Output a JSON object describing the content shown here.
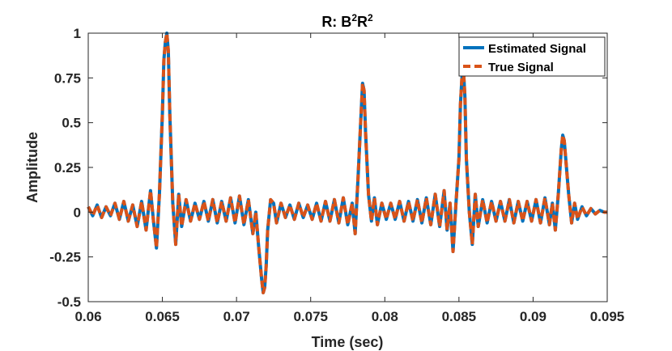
{
  "chart_data": {
    "type": "line",
    "title_base": "R: B",
    "title_sup1": "2",
    "title_mid": "R",
    "title_sup2": "2",
    "xlabel": "Time (sec)",
    "ylabel": "Amplitude",
    "xlim": [
      0.06,
      0.095
    ],
    "ylim": [
      -0.5,
      1.0
    ],
    "xticks": [
      0.06,
      0.065,
      0.07,
      0.075,
      0.08,
      0.085,
      0.09,
      0.095
    ],
    "xtick_labels": [
      "0.06",
      "0.065",
      "0.07",
      "0.075",
      "0.08",
      "0.085",
      "0.09",
      "0.095"
    ],
    "yticks": [
      -0.5,
      -0.25,
      0,
      0.25,
      0.5,
      0.75,
      1
    ],
    "ytick_labels": [
      "-0.5",
      "-0.25",
      "0",
      "0.25",
      "0.5",
      "0.75",
      "1"
    ],
    "grid": false,
    "legend_position": "top-right",
    "series": [
      {
        "name": "Estimated Signal",
        "color": "#0072BD",
        "style": "solid",
        "x": [
          0.06,
          0.0603,
          0.0606,
          0.0609,
          0.0612,
          0.0615,
          0.0618,
          0.0621,
          0.0624,
          0.0627,
          0.063,
          0.0633,
          0.0636,
          0.0639,
          0.0642,
          0.0644,
          0.0646,
          0.0648,
          0.065,
          0.0651,
          0.0652,
          0.0653,
          0.0654,
          0.0655,
          0.0657,
          0.0659,
          0.0661,
          0.0663,
          0.0666,
          0.0669,
          0.0672,
          0.0675,
          0.0678,
          0.0681,
          0.0684,
          0.0687,
          0.069,
          0.0693,
          0.0696,
          0.0699,
          0.0702,
          0.0705,
          0.0708,
          0.0711,
          0.0713,
          0.0715,
          0.0717,
          0.0718,
          0.0719,
          0.072,
          0.0721,
          0.0723,
          0.0725,
          0.0727,
          0.073,
          0.0733,
          0.0736,
          0.0739,
          0.0742,
          0.0745,
          0.0748,
          0.0751,
          0.0754,
          0.0757,
          0.076,
          0.0763,
          0.0766,
          0.0769,
          0.0772,
          0.0775,
          0.0778,
          0.078,
          0.0782,
          0.0784,
          0.0785,
          0.0786,
          0.0787,
          0.0789,
          0.0791,
          0.0793,
          0.0795,
          0.0798,
          0.0801,
          0.0804,
          0.0807,
          0.081,
          0.0813,
          0.0816,
          0.0819,
          0.0822,
          0.0825,
          0.0828,
          0.0831,
          0.0834,
          0.0837,
          0.084,
          0.0842,
          0.0844,
          0.0846,
          0.0848,
          0.085,
          0.0851,
          0.0852,
          0.0853,
          0.0854,
          0.0855,
          0.0857,
          0.0859,
          0.0861,
          0.0863,
          0.0866,
          0.0869,
          0.0872,
          0.0875,
          0.0878,
          0.0881,
          0.0884,
          0.0887,
          0.089,
          0.0893,
          0.0896,
          0.0899,
          0.0902,
          0.0905,
          0.0908,
          0.0911,
          0.0913,
          0.0915,
          0.0917,
          0.0919,
          0.092,
          0.0921,
          0.0922,
          0.0924,
          0.0926,
          0.0928,
          0.093,
          0.0933,
          0.0936,
          0.0939,
          0.0942,
          0.0945,
          0.0948,
          0.095
        ],
        "y": [
          0.03,
          -0.02,
          0.04,
          -0.03,
          0.03,
          -0.02,
          0.05,
          -0.04,
          0.06,
          -0.05,
          0.04,
          -0.08,
          0.06,
          -0.1,
          0.12,
          -0.05,
          -0.2,
          0.1,
          0.55,
          0.85,
          0.95,
          1.0,
          0.9,
          0.55,
          0.05,
          -0.18,
          0.1,
          -0.08,
          0.07,
          -0.05,
          0.05,
          -0.04,
          0.06,
          -0.05,
          0.07,
          -0.06,
          0.06,
          -0.05,
          0.08,
          -0.06,
          0.09,
          -0.07,
          0.07,
          -0.12,
          0.0,
          -0.2,
          -0.38,
          -0.45,
          -0.42,
          -0.3,
          -0.1,
          0.07,
          0.05,
          -0.06,
          0.05,
          -0.03,
          0.04,
          -0.04,
          0.05,
          -0.03,
          0.04,
          -0.04,
          0.05,
          -0.05,
          0.06,
          -0.05,
          0.07,
          -0.06,
          0.08,
          -0.07,
          0.05,
          -0.12,
          0.2,
          0.55,
          0.72,
          0.68,
          0.45,
          0.1,
          -0.05,
          0.08,
          -0.07,
          0.05,
          -0.04,
          0.05,
          -0.04,
          0.06,
          -0.05,
          0.06,
          -0.05,
          0.07,
          -0.06,
          0.08,
          -0.07,
          0.1,
          -0.08,
          0.12,
          -0.1,
          0.05,
          -0.22,
          0.05,
          0.3,
          0.6,
          0.75,
          0.8,
          0.65,
          0.3,
          0.0,
          -0.18,
          0.1,
          -0.08,
          0.07,
          -0.06,
          0.06,
          -0.05,
          0.06,
          -0.05,
          0.07,
          -0.06,
          0.06,
          -0.05,
          0.06,
          -0.05,
          0.07,
          -0.06,
          0.08,
          -0.07,
          0.05,
          -0.1,
          0.1,
          0.35,
          0.43,
          0.4,
          0.3,
          0.1,
          -0.06,
          0.05,
          -0.04,
          0.03,
          -0.02,
          0.02,
          -0.01,
          0.01,
          0.0,
          0.0
        ]
      },
      {
        "name": "True Signal",
        "color": "#D95319",
        "style": "dashed",
        "x": [
          0.06,
          0.0603,
          0.0606,
          0.0609,
          0.0612,
          0.0615,
          0.0618,
          0.0621,
          0.0624,
          0.0627,
          0.063,
          0.0633,
          0.0636,
          0.0639,
          0.0642,
          0.0644,
          0.0646,
          0.0648,
          0.065,
          0.0651,
          0.0652,
          0.0653,
          0.0654,
          0.0655,
          0.0657,
          0.0659,
          0.0661,
          0.0663,
          0.0666,
          0.0669,
          0.0672,
          0.0675,
          0.0678,
          0.0681,
          0.0684,
          0.0687,
          0.069,
          0.0693,
          0.0696,
          0.0699,
          0.0702,
          0.0705,
          0.0708,
          0.0711,
          0.0713,
          0.0715,
          0.0717,
          0.0718,
          0.0719,
          0.072,
          0.0721,
          0.0723,
          0.0725,
          0.0727,
          0.073,
          0.0733,
          0.0736,
          0.0739,
          0.0742,
          0.0745,
          0.0748,
          0.0751,
          0.0754,
          0.0757,
          0.076,
          0.0763,
          0.0766,
          0.0769,
          0.0772,
          0.0775,
          0.0778,
          0.078,
          0.0782,
          0.0784,
          0.0785,
          0.0786,
          0.0787,
          0.0789,
          0.0791,
          0.0793,
          0.0795,
          0.0798,
          0.0801,
          0.0804,
          0.0807,
          0.081,
          0.0813,
          0.0816,
          0.0819,
          0.0822,
          0.0825,
          0.0828,
          0.0831,
          0.0834,
          0.0837,
          0.084,
          0.0842,
          0.0844,
          0.0846,
          0.0848,
          0.085,
          0.0851,
          0.0852,
          0.0853,
          0.0854,
          0.0855,
          0.0857,
          0.0859,
          0.0861,
          0.0863,
          0.0866,
          0.0869,
          0.0872,
          0.0875,
          0.0878,
          0.0881,
          0.0884,
          0.0887,
          0.089,
          0.0893,
          0.0896,
          0.0899,
          0.0902,
          0.0905,
          0.0908,
          0.0911,
          0.0913,
          0.0915,
          0.0917,
          0.0919,
          0.092,
          0.0921,
          0.0922,
          0.0924,
          0.0926,
          0.0928,
          0.093,
          0.0933,
          0.0936,
          0.0939,
          0.0942,
          0.0945,
          0.0948,
          0.095
        ],
        "y": [
          0.03,
          -0.02,
          0.04,
          -0.03,
          0.03,
          -0.02,
          0.05,
          -0.04,
          0.06,
          -0.05,
          0.04,
          -0.08,
          0.06,
          -0.1,
          0.12,
          -0.05,
          -0.2,
          0.1,
          0.55,
          0.85,
          0.95,
          1.0,
          0.9,
          0.55,
          0.05,
          -0.18,
          0.1,
          -0.08,
          0.07,
          -0.05,
          0.05,
          -0.04,
          0.06,
          -0.05,
          0.07,
          -0.06,
          0.06,
          -0.05,
          0.08,
          -0.06,
          0.09,
          -0.07,
          0.07,
          -0.12,
          0.0,
          -0.2,
          -0.38,
          -0.45,
          -0.42,
          -0.3,
          -0.1,
          0.07,
          0.05,
          -0.06,
          0.05,
          -0.03,
          0.04,
          -0.04,
          0.05,
          -0.03,
          0.04,
          -0.04,
          0.05,
          -0.05,
          0.06,
          -0.05,
          0.07,
          -0.06,
          0.08,
          -0.07,
          0.05,
          -0.12,
          0.2,
          0.55,
          0.72,
          0.68,
          0.45,
          0.1,
          -0.05,
          0.08,
          -0.07,
          0.05,
          -0.04,
          0.05,
          -0.04,
          0.06,
          -0.05,
          0.06,
          -0.05,
          0.07,
          -0.06,
          0.08,
          -0.07,
          0.1,
          -0.08,
          0.12,
          -0.1,
          0.05,
          -0.22,
          0.05,
          0.3,
          0.6,
          0.75,
          0.8,
          0.65,
          0.3,
          0.0,
          -0.18,
          0.1,
          -0.08,
          0.07,
          -0.06,
          0.06,
          -0.05,
          0.06,
          -0.05,
          0.07,
          -0.06,
          0.06,
          -0.05,
          0.06,
          -0.05,
          0.07,
          -0.06,
          0.08,
          -0.07,
          0.05,
          -0.1,
          0.1,
          0.35,
          0.43,
          0.4,
          0.3,
          0.1,
          -0.06,
          0.05,
          -0.04,
          0.03,
          -0.02,
          0.02,
          -0.01,
          0.01,
          0.0,
          0.0
        ]
      }
    ]
  }
}
